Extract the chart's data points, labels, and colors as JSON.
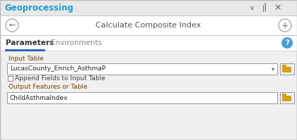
{
  "bg_color": "#ebebeb",
  "panel_bg": "#f0f0f0",
  "white": "#ffffff",
  "geoprocessing_text": "Geoprocessing",
  "geoprocessing_color": "#1a9bd7",
  "title_text": "Calculate Composite Index",
  "title_color": "#555555",
  "tab1_text": "Parameters",
  "tab2_text": "Environments",
  "tab_active_color": "#333333",
  "tab_inactive_color": "#888888",
  "tab_underline_color": "#2060b0",
  "input_label": "Input Table",
  "input_value": "LucasCounty_Enrich_AsthmaP",
  "checkbox_label": "Append Fields to Input Table",
  "output_label": "Output Features or Table",
  "output_value": "ChildAsthmaIndex",
  "label_color": "#7b3f00",
  "field_bg": "#ffffff",
  "field_border": "#999999",
  "folder_color": "#d4a017",
  "folder_dark": "#b8860b",
  "help_circle_color": "#4a9fd4",
  "help_text_color": "#ffffff",
  "icon_color": "#555555",
  "separator_color": "#cccccc",
  "top_bar_height": 22,
  "nav_bar_height": 28,
  "tab_bar_height": 22
}
